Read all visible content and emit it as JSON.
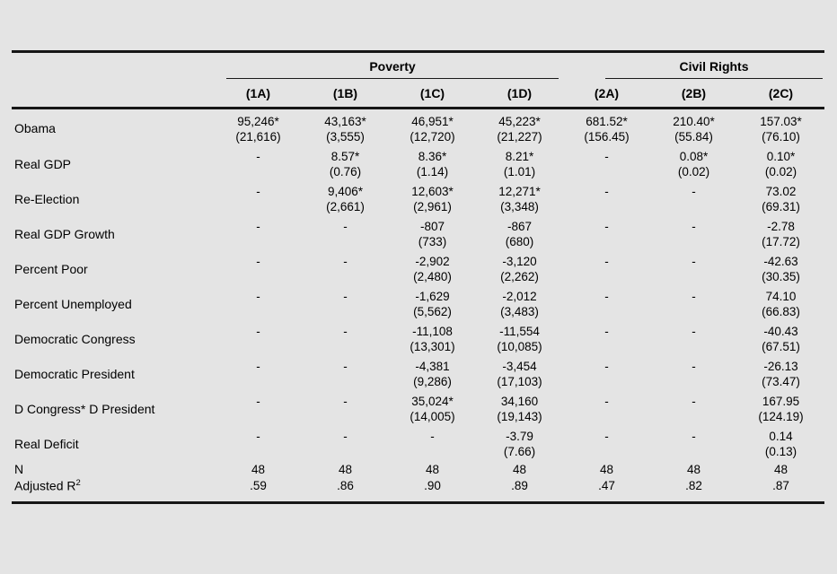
{
  "table": {
    "groups": [
      {
        "label": "Poverty",
        "span": 4
      },
      {
        "label": "Civil Rights",
        "span": 3
      }
    ],
    "col_headers": [
      "(1A)",
      "(1B)",
      "(1C)",
      "(1D)",
      "(2A)",
      "(2B)",
      "(2C)"
    ],
    "rows": [
      {
        "label": "Obama",
        "cells": [
          {
            "v": "95,246*",
            "se": "(21,616)"
          },
          {
            "v": "43,163*",
            "se": "(3,555)"
          },
          {
            "v": "46,951*",
            "se": "(12,720)"
          },
          {
            "v": "45,223*",
            "se": "(21,227)"
          },
          {
            "v": "681.52*",
            "se": "(156.45)"
          },
          {
            "v": "210.40*",
            "se": "(55.84)"
          },
          {
            "v": "157.03*",
            "se": "(76.10)"
          }
        ]
      },
      {
        "label": "Real GDP",
        "cells": [
          "-",
          {
            "v": "8.57*",
            "se": "(0.76)"
          },
          {
            "v": "8.36*",
            "se": "(1.14)"
          },
          {
            "v": "8.21*",
            "se": "(1.01)"
          },
          "-",
          {
            "v": "0.08*",
            "se": "(0.02)"
          },
          {
            "v": "0.10*",
            "se": "(0.02)"
          }
        ]
      },
      {
        "label": "Re-Election",
        "cells": [
          "-",
          {
            "v": "9,406*",
            "se": "(2,661)"
          },
          {
            "v": "12,603*",
            "se": "(2,961)"
          },
          {
            "v": "12,271*",
            "se": "(3,348)"
          },
          "-",
          "-",
          {
            "v": "73.02",
            "se": "(69.31)"
          }
        ]
      },
      {
        "label": "Real GDP Growth",
        "cells": [
          "-",
          "-",
          {
            "v": "-807",
            "se": "(733)"
          },
          {
            "v": "-867",
            "se": "(680)"
          },
          "-",
          "-",
          {
            "v": "-2.78",
            "se": "(17.72)"
          }
        ]
      },
      {
        "label": "Percent Poor",
        "cells": [
          "-",
          "-",
          {
            "v": "-2,902",
            "se": "(2,480)"
          },
          {
            "v": "-3,120",
            "se": "(2,262)"
          },
          "-",
          "-",
          {
            "v": "-42.63",
            "se": "(30.35)"
          }
        ]
      },
      {
        "label": "Percent Unemployed",
        "cells": [
          "-",
          "-",
          {
            "v": "-1,629",
            "se": "(5,562)"
          },
          {
            "v": "-2,012",
            "se": "(3,483)"
          },
          "-",
          "-",
          {
            "v": "74.10",
            "se": "(66.83)"
          }
        ]
      },
      {
        "label": "Democratic Congress",
        "cells": [
          "-",
          "-",
          {
            "v": "-11,108",
            "se": "(13,301)"
          },
          {
            "v": "-11,554",
            "se": "(10,085)"
          },
          "-",
          "-",
          {
            "v": "-40.43",
            "se": "(67.51)"
          }
        ]
      },
      {
        "label": "Democratic President",
        "cells": [
          "-",
          "-",
          {
            "v": "-4,381",
            "se": "(9,286)"
          },
          {
            "v": "-3,454",
            "se": "(17,103)"
          },
          "-",
          "-",
          {
            "v": "-26.13",
            "se": "(73.47)"
          }
        ]
      },
      {
        "label": "D Congress* D President",
        "cells": [
          "-",
          "-",
          {
            "v": "35,024*",
            "se": "(14,005)"
          },
          {
            "v": "34,160",
            "se": "(19,143)"
          },
          "-",
          "-",
          {
            "v": "167.95",
            "se": "(124.19)"
          }
        ]
      },
      {
        "label": "Real Deficit",
        "cells": [
          "-",
          "-",
          "-",
          {
            "v": "-3.79",
            "se": "(7.66)"
          },
          "-",
          "-",
          {
            "v": "0.14",
            "se": "(0.13)"
          }
        ]
      }
    ],
    "stats": [
      {
        "label": "N",
        "values": [
          "48",
          "48",
          "48",
          "48",
          "48",
          "48",
          "48"
        ]
      },
      {
        "label": "Adjusted R",
        "label_sup": "2",
        "values": [
          ".59",
          ".86",
          ".90",
          ".89",
          ".47",
          ".82",
          ".87"
        ]
      }
    ]
  },
  "colors": {
    "background": "#e4e4e4",
    "rule": "#161616",
    "text": "#000000"
  }
}
